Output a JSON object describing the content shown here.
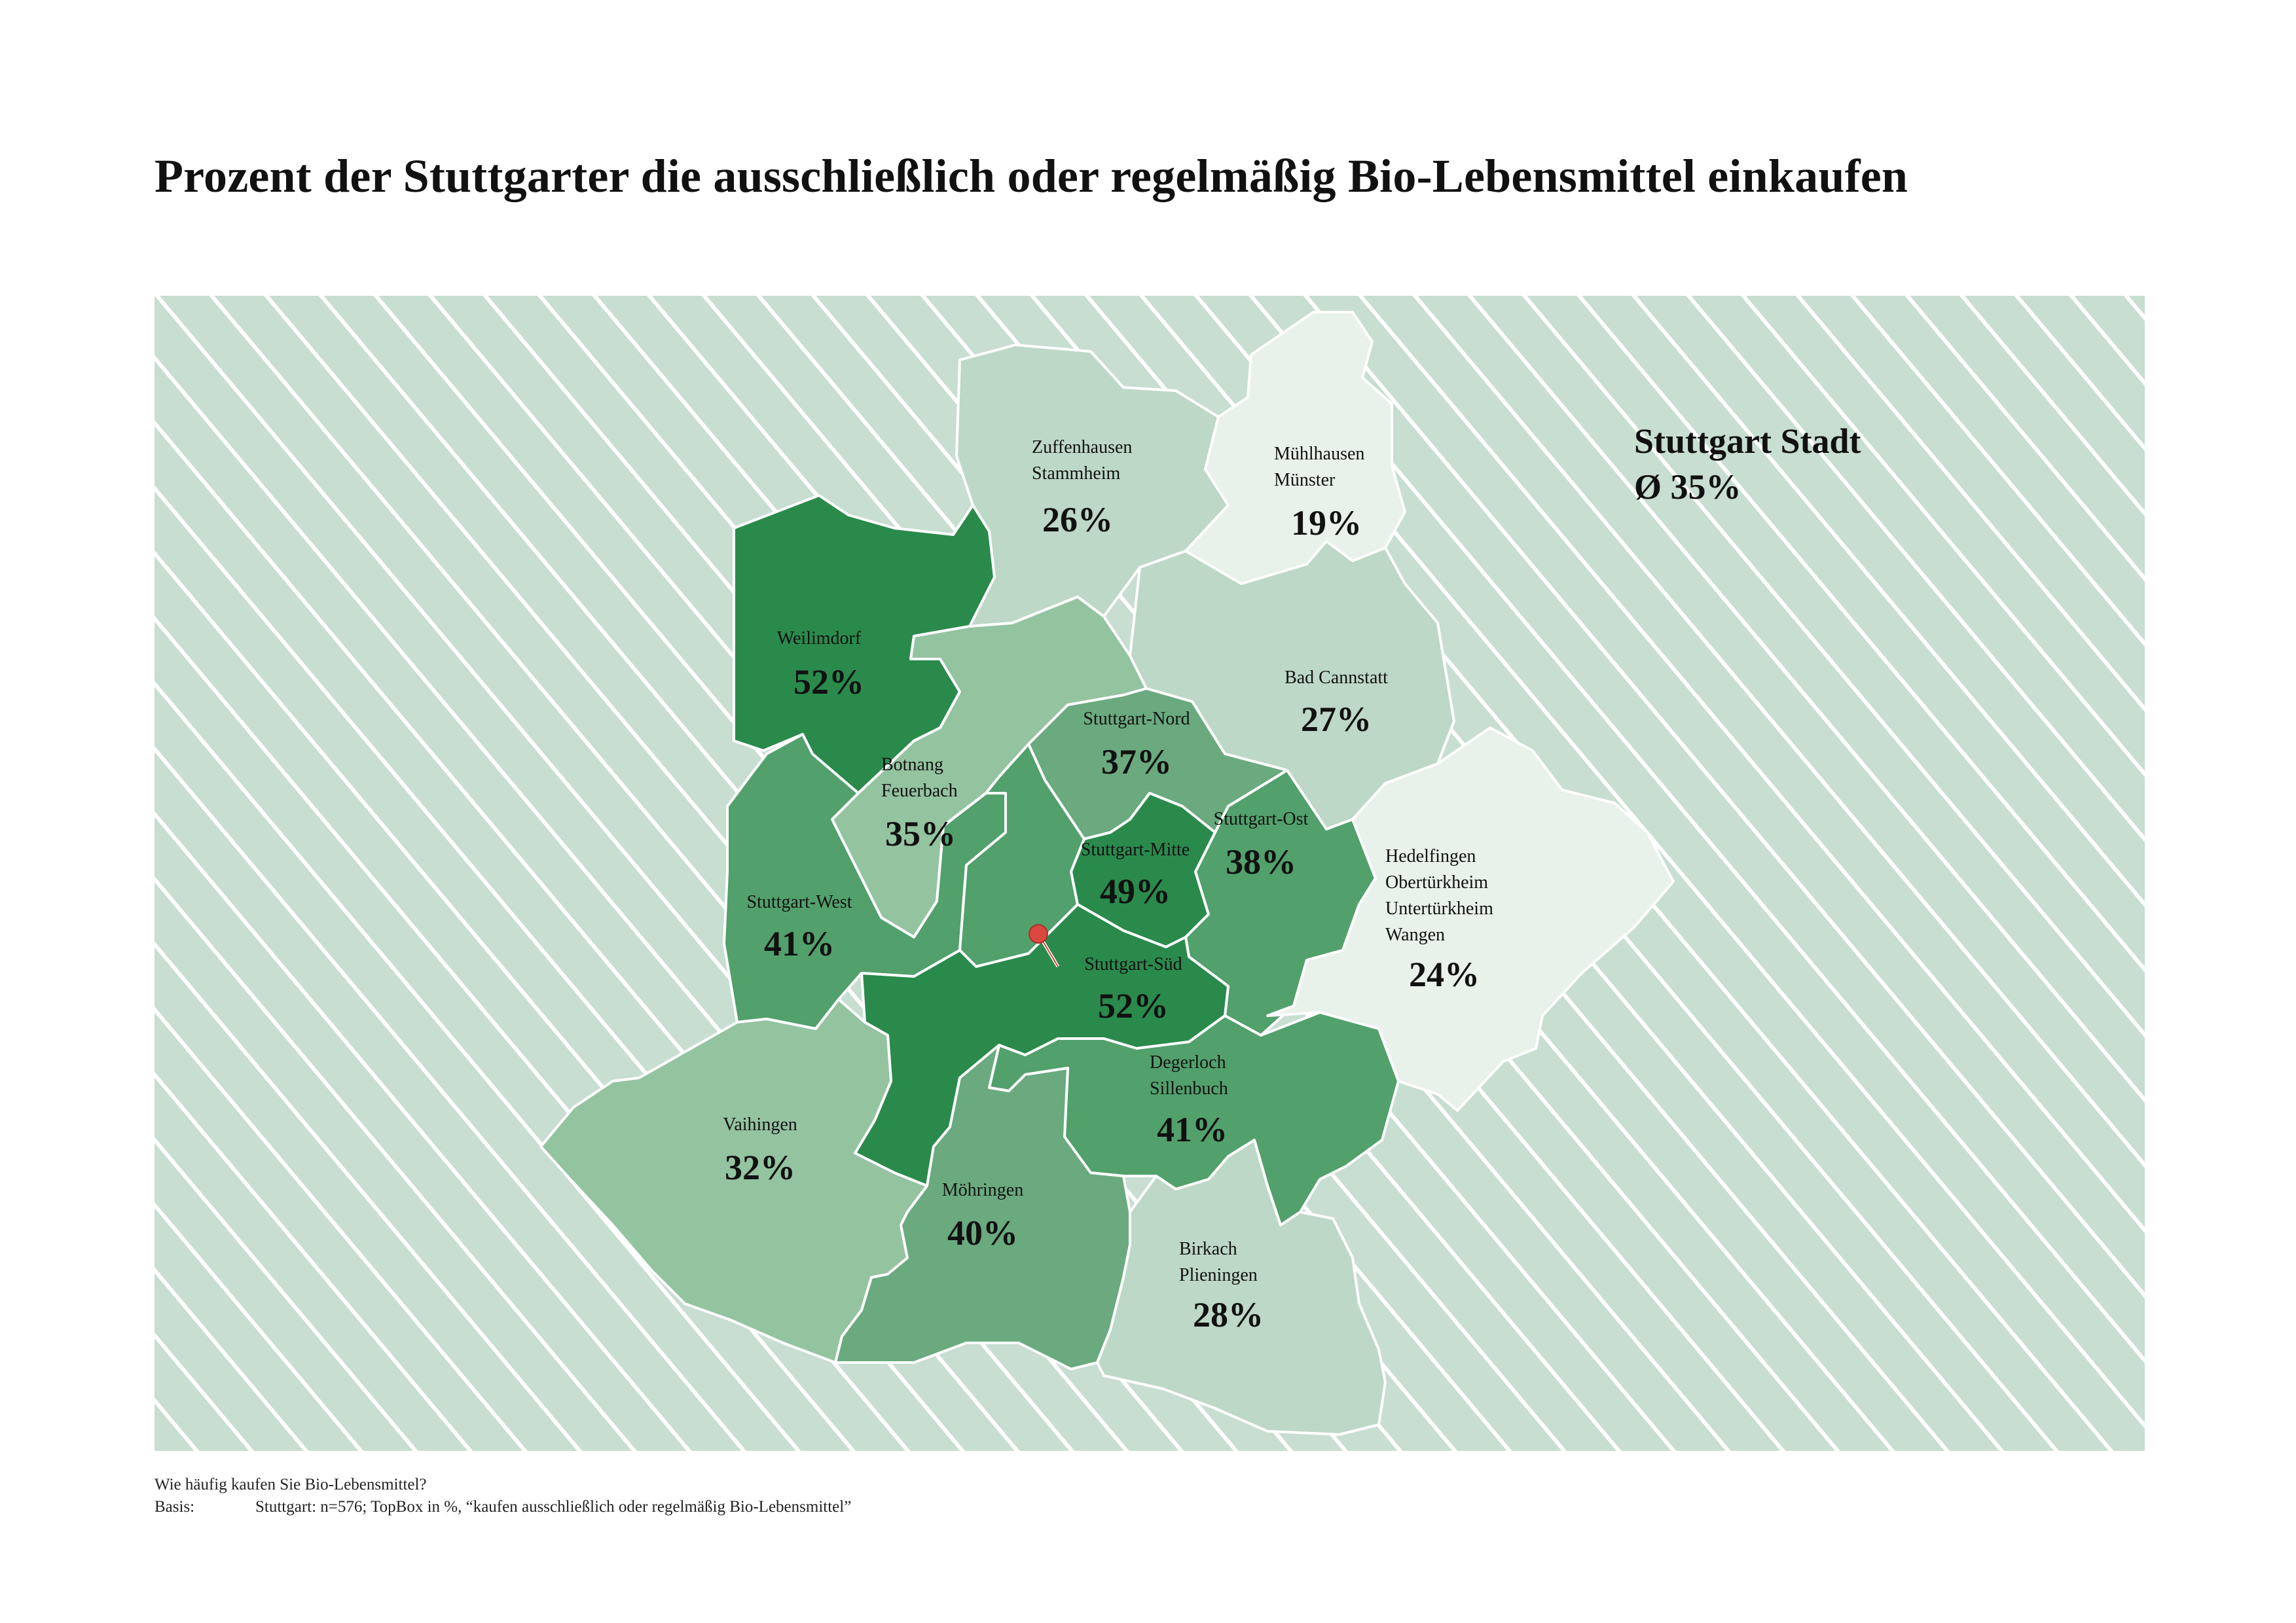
{
  "title": "Prozent der Stuttgarter die ausschließlich oder regelmäßig Bio-Lebensmittel einkaufen",
  "summary": {
    "heading": "Stuttgart Stadt",
    "average": "Ø 35%"
  },
  "colors": {
    "background_stripes": "#c7ded1",
    "lightest": "#e8f1ea",
    "light": "#bdd8c6",
    "medium_light": "#94c3a0",
    "medium": "#6aaa7e",
    "medium_dark": "#52a06c",
    "dark": "#2a8a4c",
    "marker": "#d9473f"
  },
  "districts": [
    {
      "id": "zuffenhausen",
      "names": [
        "Zuffenhausen",
        "Stammheim"
      ],
      "value": "26%",
      "percent": 26
    },
    {
      "id": "muehlhausen",
      "names": [
        "Mühlhausen",
        "Münster"
      ],
      "value": "19%",
      "percent": 19
    },
    {
      "id": "weilimdorf",
      "names": [
        "Weilimdorf"
      ],
      "value": "52%",
      "percent": 52
    },
    {
      "id": "bad-cannstatt",
      "names": [
        "Bad Cannstatt"
      ],
      "value": "27%",
      "percent": 27
    },
    {
      "id": "stuttgart-nord",
      "names": [
        "Stuttgart-Nord"
      ],
      "value": "37%",
      "percent": 37
    },
    {
      "id": "botnang",
      "names": [
        "Botnang",
        "Feuerbach"
      ],
      "value": "35%",
      "percent": 35
    },
    {
      "id": "stuttgart-ost",
      "names": [
        "Stuttgart-Ost"
      ],
      "value": "38%",
      "percent": 38
    },
    {
      "id": "stuttgart-mitte",
      "names": [
        "Stuttgart-Mitte"
      ],
      "value": "49%",
      "percent": 49
    },
    {
      "id": "hedelfingen",
      "names": [
        "Hedelfingen",
        "Obertürkheim",
        "Untertürkheim",
        "Wangen"
      ],
      "value": "24%",
      "percent": 24
    },
    {
      "id": "stuttgart-west",
      "names": [
        "Stuttgart-West"
      ],
      "value": "41%",
      "percent": 41
    },
    {
      "id": "stuttgart-sued",
      "names": [
        "Stuttgart-Süd"
      ],
      "value": "52%",
      "percent": 52
    },
    {
      "id": "degerloch",
      "names": [
        "Degerloch",
        "Sillenbuch"
      ],
      "value": "41%",
      "percent": 41
    },
    {
      "id": "vaihingen",
      "names": [
        "Vaihingen"
      ],
      "value": "32%",
      "percent": 32
    },
    {
      "id": "moehringen",
      "names": [
        "Möhringen"
      ],
      "value": "40%",
      "percent": 40
    },
    {
      "id": "birkach",
      "names": [
        "Birkach",
        "Plieningen"
      ],
      "value": "28%",
      "percent": 28
    }
  ],
  "footer": {
    "question": "Wie häufig kaufen Sie Bio-Lebensmittel?",
    "basis_label": "Basis:",
    "basis_text": "Stuttgart: n=576; TopBox in %, “kaufen ausschließlich oder regelmäßig Bio-Lebensmittel”"
  }
}
